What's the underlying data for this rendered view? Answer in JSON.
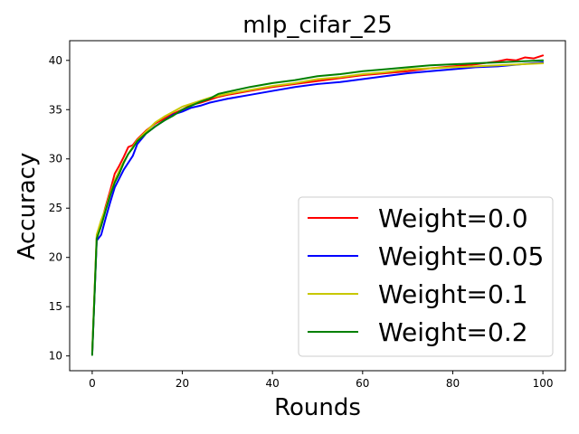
{
  "chart_data": {
    "type": "line",
    "title": "mlp_cifar_25",
    "xlabel": "Rounds",
    "ylabel": "Accuracy",
    "xlim": [
      -5,
      105
    ],
    "ylim": [
      8.5,
      42
    ],
    "xticks": [
      0,
      20,
      40,
      60,
      80,
      100
    ],
    "yticks": [
      10,
      15,
      20,
      25,
      30,
      35,
      40
    ],
    "grid": false,
    "legend_position": "lower-right",
    "series": [
      {
        "name": "Weight=0.0",
        "color": "#ff0000",
        "points": [
          [
            0,
            10.2
          ],
          [
            1,
            22.0
          ],
          [
            2,
            23.5
          ],
          [
            3,
            25.2
          ],
          [
            4,
            26.8
          ],
          [
            5,
            28.5
          ],
          [
            6,
            29.3
          ],
          [
            7,
            30.2
          ],
          [
            8,
            31.2
          ],
          [
            9,
            31.4
          ],
          [
            10,
            32.0
          ],
          [
            12,
            32.9
          ],
          [
            14,
            33.6
          ],
          [
            16,
            34.1
          ],
          [
            18,
            34.6
          ],
          [
            20,
            35.0
          ],
          [
            22,
            35.5
          ],
          [
            24,
            35.7
          ],
          [
            26,
            36.0
          ],
          [
            28,
            36.3
          ],
          [
            30,
            36.5
          ],
          [
            35,
            36.9
          ],
          [
            40,
            37.3
          ],
          [
            45,
            37.6
          ],
          [
            50,
            37.9
          ],
          [
            55,
            38.2
          ],
          [
            60,
            38.5
          ],
          [
            65,
            38.7
          ],
          [
            70,
            38.9
          ],
          [
            75,
            39.2
          ],
          [
            80,
            39.4
          ],
          [
            85,
            39.6
          ],
          [
            90,
            39.9
          ],
          [
            92,
            40.1
          ],
          [
            94,
            40.0
          ],
          [
            96,
            40.3
          ],
          [
            98,
            40.2
          ],
          [
            100,
            40.5
          ]
        ]
      },
      {
        "name": "Weight=0.05",
        "color": "#0000ff",
        "points": [
          [
            0,
            10.2
          ],
          [
            1,
            21.7
          ],
          [
            2,
            22.3
          ],
          [
            3,
            24.0
          ],
          [
            4,
            25.6
          ],
          [
            5,
            27.1
          ],
          [
            6,
            28.0
          ],
          [
            7,
            28.9
          ],
          [
            8,
            29.6
          ],
          [
            9,
            30.3
          ],
          [
            10,
            31.5
          ],
          [
            12,
            32.6
          ],
          [
            14,
            33.3
          ],
          [
            16,
            33.9
          ],
          [
            18,
            34.5
          ],
          [
            20,
            34.8
          ],
          [
            22,
            35.2
          ],
          [
            24,
            35.4
          ],
          [
            26,
            35.7
          ],
          [
            28,
            35.9
          ],
          [
            30,
            36.1
          ],
          [
            35,
            36.5
          ],
          [
            40,
            36.9
          ],
          [
            45,
            37.3
          ],
          [
            50,
            37.6
          ],
          [
            55,
            37.8
          ],
          [
            60,
            38.1
          ],
          [
            65,
            38.4
          ],
          [
            70,
            38.7
          ],
          [
            75,
            38.9
          ],
          [
            80,
            39.1
          ],
          [
            85,
            39.3
          ],
          [
            90,
            39.4
          ],
          [
            95,
            39.6
          ],
          [
            100,
            39.8
          ]
        ]
      },
      {
        "name": "Weight=0.1",
        "color": "#c8c800",
        "points": [
          [
            0,
            10.5
          ],
          [
            1,
            22.3
          ],
          [
            2,
            23.8
          ],
          [
            3,
            25.0
          ],
          [
            4,
            26.5
          ],
          [
            5,
            27.8
          ],
          [
            6,
            28.8
          ],
          [
            7,
            29.7
          ],
          [
            8,
            30.5
          ],
          [
            9,
            31.2
          ],
          [
            10,
            31.9
          ],
          [
            12,
            32.8
          ],
          [
            14,
            33.7
          ],
          [
            16,
            34.3
          ],
          [
            18,
            34.8
          ],
          [
            20,
            35.3
          ],
          [
            22,
            35.6
          ],
          [
            24,
            35.9
          ],
          [
            26,
            36.2
          ],
          [
            28,
            36.4
          ],
          [
            30,
            36.6
          ],
          [
            35,
            37.0
          ],
          [
            40,
            37.4
          ],
          [
            45,
            37.7
          ],
          [
            50,
            38.1
          ],
          [
            55,
            38.3
          ],
          [
            60,
            38.6
          ],
          [
            65,
            38.8
          ],
          [
            70,
            39.1
          ],
          [
            75,
            39.2
          ],
          [
            80,
            39.3
          ],
          [
            85,
            39.4
          ],
          [
            90,
            39.5
          ],
          [
            95,
            39.6
          ],
          [
            100,
            39.7
          ]
        ]
      },
      {
        "name": "Weight=0.2",
        "color": "#008000",
        "points": [
          [
            0,
            10.1
          ],
          [
            1,
            21.9
          ],
          [
            2,
            23.2
          ],
          [
            3,
            24.8
          ],
          [
            4,
            26.3
          ],
          [
            5,
            27.6
          ],
          [
            6,
            28.5
          ],
          [
            7,
            29.6
          ],
          [
            8,
            30.5
          ],
          [
            9,
            31.1
          ],
          [
            10,
            31.8
          ],
          [
            12,
            32.6
          ],
          [
            14,
            33.3
          ],
          [
            16,
            33.9
          ],
          [
            18,
            34.4
          ],
          [
            20,
            35.0
          ],
          [
            22,
            35.4
          ],
          [
            24,
            35.8
          ],
          [
            26,
            36.1
          ],
          [
            28,
            36.6
          ],
          [
            30,
            36.8
          ],
          [
            35,
            37.3
          ],
          [
            40,
            37.7
          ],
          [
            45,
            38.0
          ],
          [
            50,
            38.4
          ],
          [
            55,
            38.6
          ],
          [
            60,
            38.9
          ],
          [
            65,
            39.1
          ],
          [
            70,
            39.3
          ],
          [
            75,
            39.5
          ],
          [
            80,
            39.6
          ],
          [
            85,
            39.7
          ],
          [
            90,
            39.8
          ],
          [
            95,
            39.9
          ],
          [
            100,
            40.0
          ]
        ]
      }
    ]
  }
}
